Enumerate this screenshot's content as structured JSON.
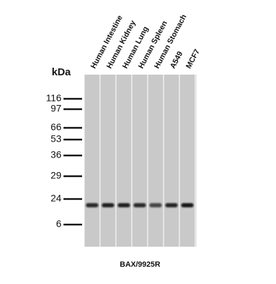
{
  "unit_label": "kDa",
  "lanes": [
    "Human Intestine",
    "Human Kidney",
    "Human Lung",
    "Human Spleen",
    "Human Stomach",
    "A549",
    "MCF7"
  ],
  "markers": [
    "116",
    "97",
    "66",
    "53",
    "36",
    "29",
    "24",
    "6"
  ],
  "caption": "BAX/9925R"
}
